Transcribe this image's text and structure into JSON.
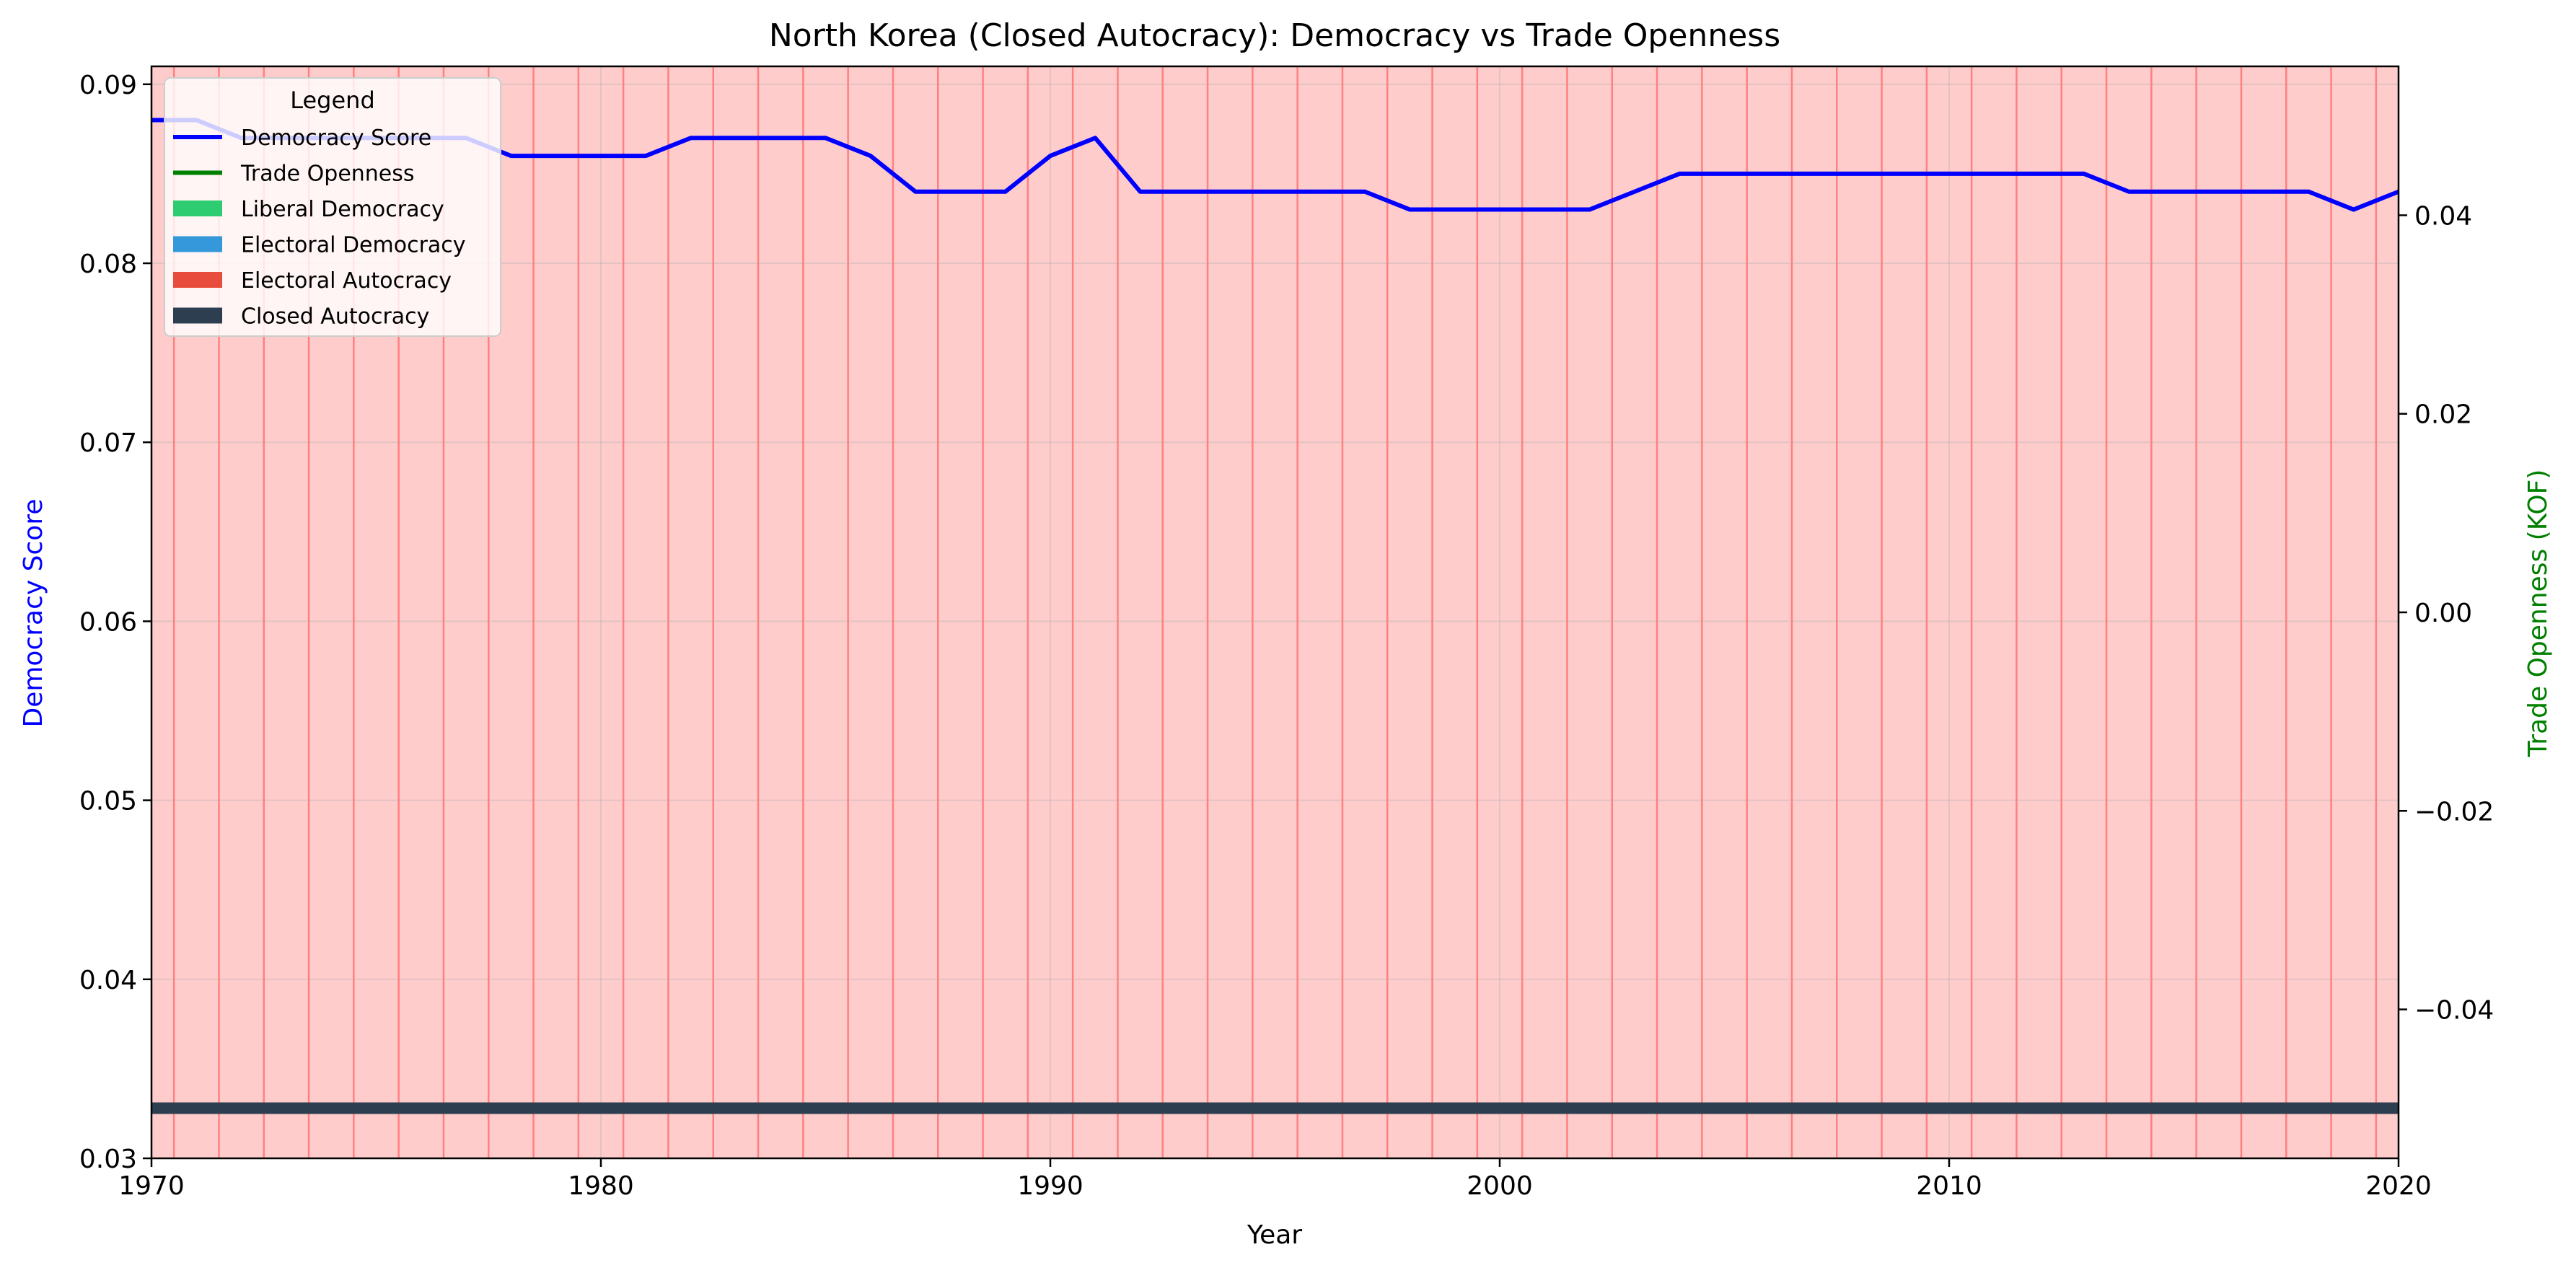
{
  "chart_data": {
    "type": "line",
    "title": "North Korea (Closed Autocracy): Democracy vs Trade Openness",
    "xlabel": "Year",
    "ylabel": "Democracy Score",
    "y2label": "Trade Openness (KOF)",
    "xlim": [
      1970,
      2020
    ],
    "ylim": [
      0.03,
      0.091
    ],
    "y2lim": [
      -0.055,
      0.055
    ],
    "xticks": [
      "1970",
      "1980",
      "1990",
      "2000",
      "2010",
      "2020"
    ],
    "yticks": [
      "0.03",
      "0.04",
      "0.05",
      "0.06",
      "0.07",
      "0.08",
      "0.09"
    ],
    "y2ticks": [
      "−0.04",
      "−0.02",
      "0.00",
      "0.02",
      "0.04"
    ],
    "grid": true,
    "legend_position": "top-left",
    "series": [
      {
        "name": "Democracy Score",
        "color": "#0000ff",
        "axis": "left",
        "x": [
          1970,
          1971,
          1972,
          1973,
          1974,
          1975,
          1976,
          1977,
          1978,
          1979,
          1980,
          1981,
          1982,
          1983,
          1984,
          1985,
          1986,
          1987,
          1988,
          1989,
          1990,
          1991,
          1992,
          1993,
          1994,
          1995,
          1996,
          1997,
          1998,
          1999,
          2000,
          2001,
          2002,
          2003,
          2004,
          2005,
          2006,
          2007,
          2008,
          2009,
          2010,
          2011,
          2012,
          2013,
          2014,
          2015,
          2016,
          2017,
          2018,
          2019,
          2020
        ],
        "values": [
          0.088,
          0.088,
          0.087,
          0.087,
          0.087,
          0.087,
          0.087,
          0.087,
          0.086,
          0.086,
          0.086,
          0.086,
          0.087,
          0.087,
          0.087,
          0.087,
          0.086,
          0.084,
          0.084,
          0.084,
          0.086,
          0.087,
          0.084,
          0.084,
          0.084,
          0.084,
          0.084,
          0.084,
          0.083,
          0.083,
          0.083,
          0.083,
          0.083,
          0.084,
          0.085,
          0.085,
          0.085,
          0.085,
          0.085,
          0.085,
          0.085,
          0.085,
          0.085,
          0.085,
          0.084,
          0.084,
          0.084,
          0.084,
          0.084,
          0.083,
          0.084
        ]
      },
      {
        "name": "Trade Openness",
        "color": "#008000",
        "axis": "right",
        "x": [],
        "values": []
      }
    ],
    "regime_band": {
      "label": "Closed Autocracy",
      "color": "#2c3e50",
      "y": 0.0328
    },
    "background_spans": {
      "fill": "#ffcccc",
      "line": "#ff8080",
      "years": [
        1970.5,
        1971.5,
        1972.5,
        1973.5,
        1974.5,
        1975.5,
        1976.5,
        1977.5,
        1978.5,
        1979.5,
        1980.5,
        1981.5,
        1982.5,
        1983.5,
        1984.5,
        1985.5,
        1986.5,
        1987.5,
        1988.5,
        1989.5,
        1990.5,
        1991.5,
        1992.5,
        1993.5,
        1994.5,
        1995.5,
        1996.5,
        1997.5,
        1998.5,
        1999.5,
        2000.5,
        2001.5,
        2002.5,
        2003.5,
        2004.5,
        2005.5,
        2006.5,
        2007.5,
        2008.5,
        2009.5,
        2010.5,
        2011.5,
        2012.5,
        2013.5,
        2014.5,
        2015.5,
        2016.5,
        2017.5,
        2018.5,
        2019.5
      ]
    },
    "legend": {
      "title": "Legend",
      "entries": [
        {
          "label": "Democracy Score",
          "kind": "line",
          "color": "#0000ff"
        },
        {
          "label": "Trade Openness",
          "kind": "line",
          "color": "#008000"
        },
        {
          "label": "Liberal Democracy",
          "kind": "patch",
          "color": "#2ecc71"
        },
        {
          "label": "Electoral Democracy",
          "kind": "patch",
          "color": "#3498db"
        },
        {
          "label": "Electoral Autocracy",
          "kind": "patch",
          "color": "#e74c3c"
        },
        {
          "label": "Closed Autocracy",
          "kind": "patch",
          "color": "#2c3e50"
        }
      ]
    }
  }
}
